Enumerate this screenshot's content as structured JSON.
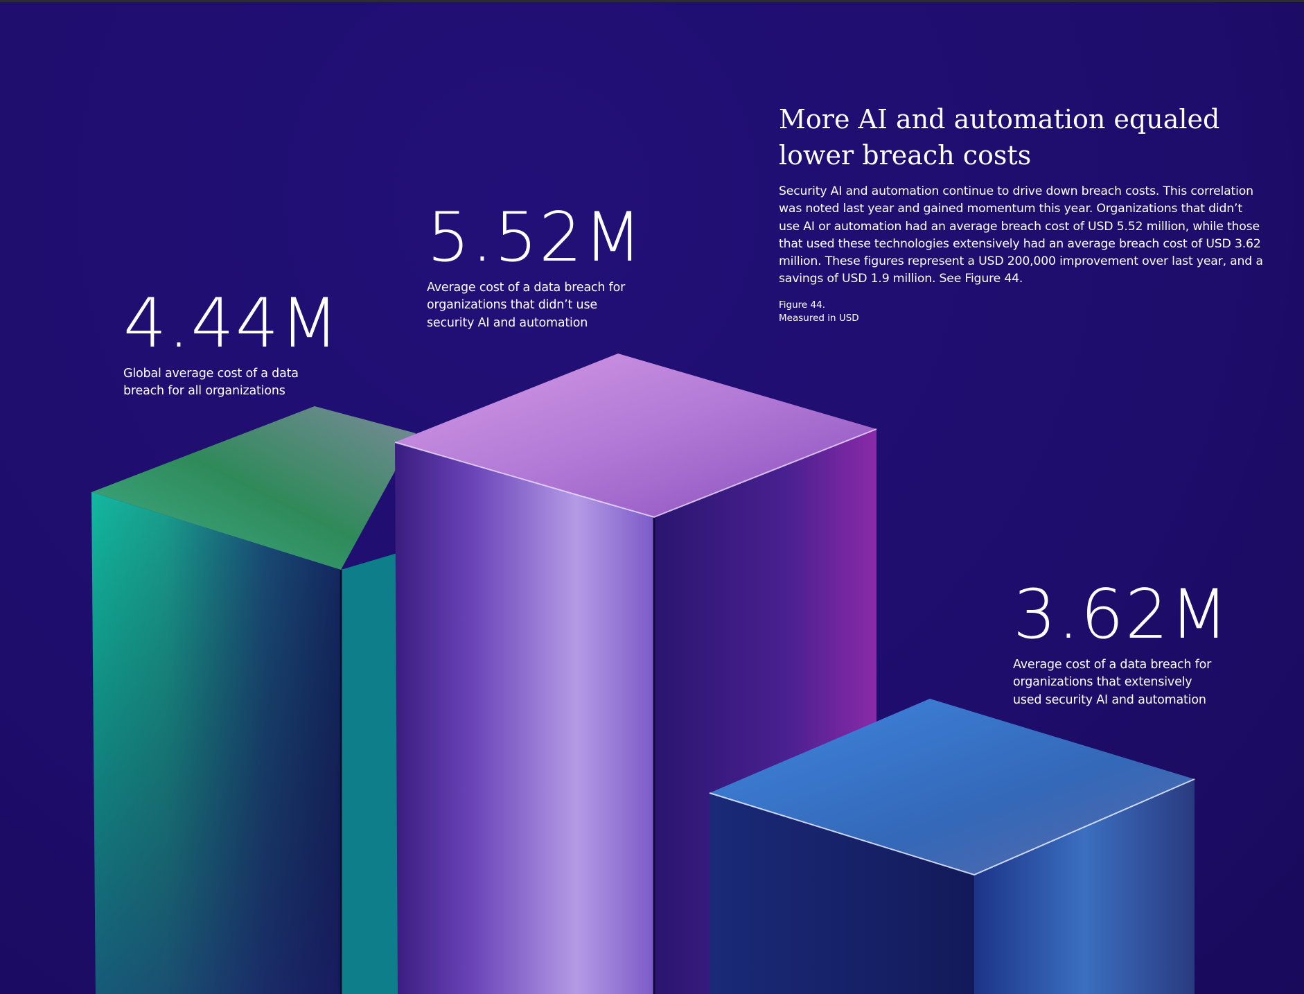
{
  "heading": "More AI and automation equaled lower breach costs",
  "body": "Security AI and automation continue to drive down breach costs. This correlation was noted last year and gained momentum this year. Organizations that didn’t use AI or automation had an average breach cost of USD 5.52 million, while those that used these technologies extensively had an average breach cost of USD 3.62 million. These figures represent a USD 200,000 improvement over last year, and a savings of USD 1.9 million. See Figure 44.",
  "figure": {
    "label": "Figure 44.",
    "unit_note": "Measured in USD"
  },
  "stats": [
    {
      "value": "4.44M",
      "caption": "Global average cost of a data breach for all organizations"
    },
    {
      "value": "5.52M",
      "caption": "Average cost of a data breach for organizations that didn’t use security AI and automation"
    },
    {
      "value": "3.62M",
      "caption": "Average cost of a data breach for organizations that extensively used security AI and automation"
    }
  ],
  "chart_data": {
    "type": "bar",
    "style": "3d glass blocks",
    "categories": [
      "Global average cost of a data breach for all organizations",
      "Average cost of a data breach for organizations that didn’t use security AI and automation",
      "Average cost of a data breach for organizations that extensively used security AI and automation"
    ],
    "values": [
      4.44,
      5.52,
      3.62
    ],
    "unit": "USD million",
    "colors": [
      "#1fb59a",
      "#a565d8",
      "#3d7fd9"
    ],
    "background": "#1f0e6e"
  }
}
